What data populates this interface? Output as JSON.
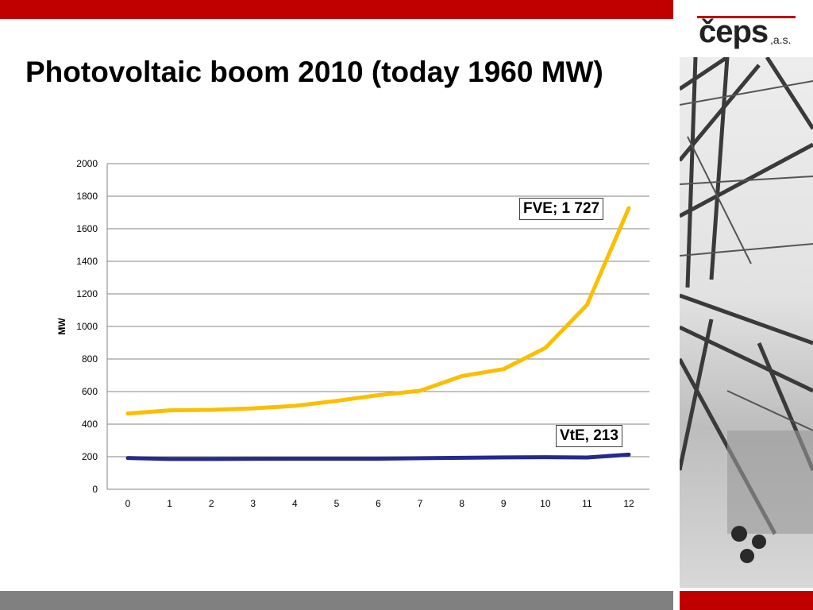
{
  "title": "Photovoltaic boom 2010 (today 1960 MW)",
  "logo": {
    "name": "čeps",
    "suffix": ",a.s."
  },
  "colors": {
    "accent_red": "#c00000",
    "footer_gray": "#808080",
    "fve": "#fbbf00",
    "vte": "#262a8c",
    "grid": "#868686"
  },
  "chart_data": {
    "type": "line",
    "title": "",
    "xlabel": "",
    "ylabel": "MW",
    "x": [
      0,
      1,
      2,
      3,
      4,
      5,
      6,
      7,
      8,
      9,
      10,
      11,
      12
    ],
    "ylim": [
      0,
      2000
    ],
    "y_ticks": [
      0,
      200,
      400,
      600,
      800,
      1000,
      1200,
      1400,
      1600,
      1800,
      2000
    ],
    "grid": true,
    "legend": "none",
    "series": [
      {
        "name": "FVE",
        "color": "#fbbf00",
        "values": [
          465,
          485,
          488,
          497,
          512,
          543,
          578,
          605,
          695,
          738,
          868,
          1133,
          1727
        ]
      },
      {
        "name": "VtE",
        "color": "#262a8c",
        "values": [
          192,
          186,
          186,
          187,
          188,
          188,
          188,
          191,
          193,
          196,
          197,
          195,
          213
        ]
      }
    ],
    "annotations": {
      "fve_label": "FVE; 1 727",
      "vte_label": "VtE, 213"
    }
  }
}
